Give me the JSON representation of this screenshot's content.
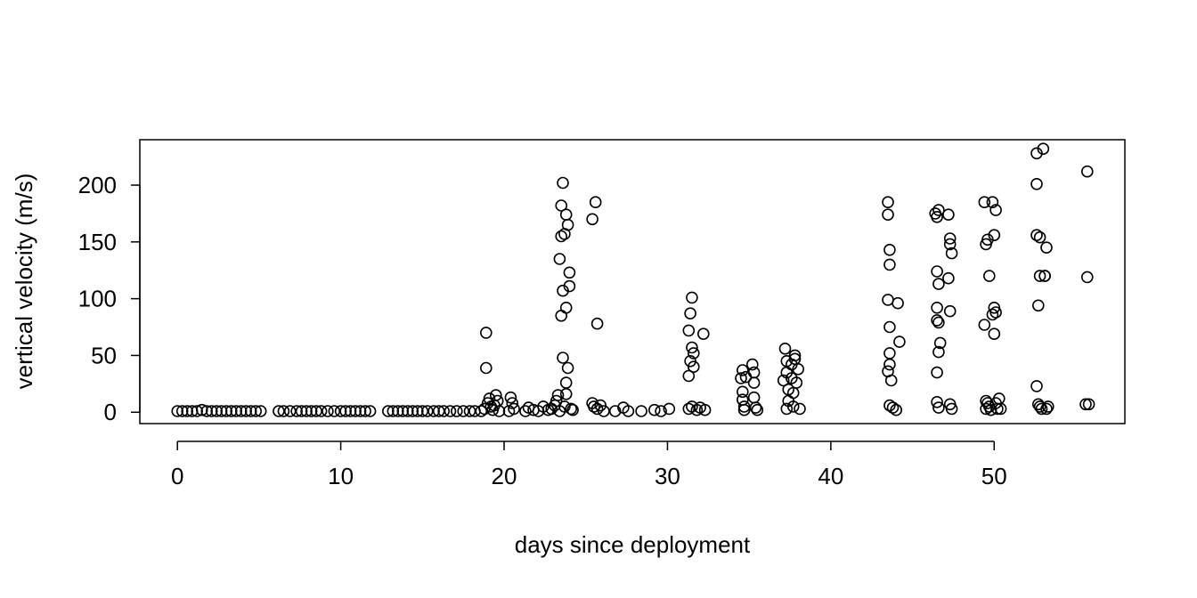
{
  "chart_data": {
    "type": "scatter",
    "title": "",
    "xlabel": "days since deployment",
    "ylabel": "vertical velocity (m/s)",
    "xlim": [
      -2.3,
      58
    ],
    "ylim": [
      -10,
      240
    ],
    "xticks": [
      0,
      10,
      20,
      30,
      40,
      50
    ],
    "yticks": [
      0,
      50,
      100,
      150,
      200
    ],
    "grid": false,
    "legend": "none",
    "marker_color": "#000000",
    "series": [
      {
        "points": [
          [
            0,
            1
          ],
          [
            0.3,
            1
          ],
          [
            0.6,
            1
          ],
          [
            0.9,
            1
          ],
          [
            1.2,
            1
          ],
          [
            1.5,
            2
          ],
          [
            1.8,
            1
          ],
          [
            2.1,
            1
          ],
          [
            2.4,
            1
          ],
          [
            2.7,
            1
          ],
          [
            3.0,
            1
          ],
          [
            3.3,
            1
          ],
          [
            3.6,
            1
          ],
          [
            3.9,
            1
          ],
          [
            4.2,
            1
          ],
          [
            4.5,
            1
          ],
          [
            4.8,
            1
          ],
          [
            5.1,
            1
          ],
          [
            6.2,
            1
          ],
          [
            6.5,
            1
          ],
          [
            6.9,
            1
          ],
          [
            7.3,
            1
          ],
          [
            7.6,
            1
          ],
          [
            7.9,
            1
          ],
          [
            8.2,
            1
          ],
          [
            8.5,
            1
          ],
          [
            8.8,
            1
          ],
          [
            9.2,
            1
          ],
          [
            9.6,
            1
          ],
          [
            10.0,
            1
          ],
          [
            10.3,
            1
          ],
          [
            10.6,
            1
          ],
          [
            10.9,
            1
          ],
          [
            11.2,
            1
          ],
          [
            11.5,
            1
          ],
          [
            11.8,
            1
          ],
          [
            12.9,
            1
          ],
          [
            13.2,
            1
          ],
          [
            13.5,
            1
          ],
          [
            13.8,
            1
          ],
          [
            14.1,
            1
          ],
          [
            14.4,
            1
          ],
          [
            14.7,
            1
          ],
          [
            15.0,
            1
          ],
          [
            15.3,
            1
          ],
          [
            15.7,
            1
          ],
          [
            16.0,
            1
          ],
          [
            16.3,
            1
          ],
          [
            16.7,
            1
          ],
          [
            17.1,
            1
          ],
          [
            17.5,
            1
          ],
          [
            17.9,
            1
          ],
          [
            18.2,
            1
          ],
          [
            18.6,
            1
          ],
          [
            18.8,
            3
          ],
          [
            18.9,
            70
          ],
          [
            18.9,
            39
          ],
          [
            19.0,
            8
          ],
          [
            19.1,
            12
          ],
          [
            19.2,
            5
          ],
          [
            19.3,
            2
          ],
          [
            19.5,
            15
          ],
          [
            19.6,
            10
          ],
          [
            19.7,
            1
          ],
          [
            19.4,
            6
          ],
          [
            20.3,
            1
          ],
          [
            20.4,
            13
          ],
          [
            20.5,
            8
          ],
          [
            20.6,
            3
          ],
          [
            21.3,
            1
          ],
          [
            21.5,
            4
          ],
          [
            21.8,
            2
          ],
          [
            22.1,
            1
          ],
          [
            22.4,
            5
          ],
          [
            22.7,
            2
          ],
          [
            22.9,
            3
          ],
          [
            23.1,
            6
          ],
          [
            23.2,
            10
          ],
          [
            23.3,
            15
          ],
          [
            23.4,
            1
          ],
          [
            23.5,
            182
          ],
          [
            23.6,
            202
          ],
          [
            23.4,
            135
          ],
          [
            23.5,
            155
          ],
          [
            23.7,
            157
          ],
          [
            23.6,
            107
          ],
          [
            23.5,
            85
          ],
          [
            23.8,
            92
          ],
          [
            23.9,
            165
          ],
          [
            23.8,
            174
          ],
          [
            24.0,
            123
          ],
          [
            24.0,
            111
          ],
          [
            23.9,
            39
          ],
          [
            23.8,
            26
          ],
          [
            23.8,
            16
          ],
          [
            23.6,
            48
          ],
          [
            23.7,
            5
          ],
          [
            24.1,
            3
          ],
          [
            24.2,
            2
          ],
          [
            25.4,
            170
          ],
          [
            25.6,
            185
          ],
          [
            25.7,
            78
          ],
          [
            25.4,
            8
          ],
          [
            25.5,
            5
          ],
          [
            25.7,
            3
          ],
          [
            25.9,
            6
          ],
          [
            26.1,
            1
          ],
          [
            26.8,
            1
          ],
          [
            27.3,
            4
          ],
          [
            27.6,
            1
          ],
          [
            28.4,
            1
          ],
          [
            29.2,
            2
          ],
          [
            29.6,
            1
          ],
          [
            30.1,
            3
          ],
          [
            31.3,
            32
          ],
          [
            31.4,
            45
          ],
          [
            31.5,
            57
          ],
          [
            31.3,
            72
          ],
          [
            31.4,
            87
          ],
          [
            31.5,
            101
          ],
          [
            31.6,
            52
          ],
          [
            31.6,
            40
          ],
          [
            31.3,
            3
          ],
          [
            31.5,
            5
          ],
          [
            31.8,
            2
          ],
          [
            32.0,
            4
          ],
          [
            32.2,
            69
          ],
          [
            32.3,
            2
          ],
          [
            34.5,
            30
          ],
          [
            34.6,
            37
          ],
          [
            34.6,
            18
          ],
          [
            34.6,
            11
          ],
          [
            34.7,
            5
          ],
          [
            34.7,
            2
          ],
          [
            34.8,
            31
          ],
          [
            35.2,
            42
          ],
          [
            35.3,
            35
          ],
          [
            35.3,
            26
          ],
          [
            35.3,
            13
          ],
          [
            35.4,
            4
          ],
          [
            35.5,
            2
          ],
          [
            37.1,
            28
          ],
          [
            37.2,
            56
          ],
          [
            37.3,
            45
          ],
          [
            37.3,
            35
          ],
          [
            37.4,
            20
          ],
          [
            37.4,
            10
          ],
          [
            37.3,
            3
          ],
          [
            37.6,
            42
          ],
          [
            37.6,
            30
          ],
          [
            37.7,
            17
          ],
          [
            37.7,
            5
          ],
          [
            37.8,
            50
          ],
          [
            37.8,
            47
          ],
          [
            37.9,
            26
          ],
          [
            38.0,
            38
          ],
          [
            38.1,
            3
          ],
          [
            43.5,
            185
          ],
          [
            43.5,
            174
          ],
          [
            43.6,
            143
          ],
          [
            43.6,
            130
          ],
          [
            43.5,
            99
          ],
          [
            43.6,
            75
          ],
          [
            43.6,
            52
          ],
          [
            43.5,
            36
          ],
          [
            43.6,
            42
          ],
          [
            43.7,
            28
          ],
          [
            43.6,
            6
          ],
          [
            43.8,
            4
          ],
          [
            44.0,
            2
          ],
          [
            44.1,
            96
          ],
          [
            44.2,
            62
          ],
          [
            46.4,
            175
          ],
          [
            46.5,
            172
          ],
          [
            46.6,
            178
          ],
          [
            46.5,
            124
          ],
          [
            46.6,
            113
          ],
          [
            46.5,
            92
          ],
          [
            46.5,
            81
          ],
          [
            46.6,
            79
          ],
          [
            46.7,
            61
          ],
          [
            46.5,
            35
          ],
          [
            46.6,
            53
          ],
          [
            46.5,
            9
          ],
          [
            46.6,
            4
          ],
          [
            47.2,
            174
          ],
          [
            47.3,
            153
          ],
          [
            47.3,
            148
          ],
          [
            47.4,
            140
          ],
          [
            47.2,
            118
          ],
          [
            47.3,
            89
          ],
          [
            47.3,
            7
          ],
          [
            47.4,
            3
          ],
          [
            49.4,
            185
          ],
          [
            49.5,
            148
          ],
          [
            49.6,
            152
          ],
          [
            49.7,
            120
          ],
          [
            49.4,
            77
          ],
          [
            49.5,
            10
          ],
          [
            49.6,
            8
          ],
          [
            49.5,
            3
          ],
          [
            49.7,
            5
          ],
          [
            49.8,
            2
          ],
          [
            49.9,
            185
          ],
          [
            50.0,
            156
          ],
          [
            50.1,
            178
          ],
          [
            50.0,
            92
          ],
          [
            50.1,
            88
          ],
          [
            49.9,
            86
          ],
          [
            50.0,
            69
          ],
          [
            50.1,
            8
          ],
          [
            50.2,
            3
          ],
          [
            50.3,
            12
          ],
          [
            50.4,
            3
          ],
          [
            52.6,
            228
          ],
          [
            52.6,
            201
          ],
          [
            52.6,
            156
          ],
          [
            52.8,
            154
          ],
          [
            52.8,
            120
          ],
          [
            52.7,
            94
          ],
          [
            52.6,
            23
          ],
          [
            52.7,
            7
          ],
          [
            52.8,
            5
          ],
          [
            52.9,
            3
          ],
          [
            53.0,
            232
          ],
          [
            53.1,
            120
          ],
          [
            53.1,
            120
          ],
          [
            53.2,
            145
          ],
          [
            53.2,
            3
          ],
          [
            53.3,
            5
          ],
          [
            55.7,
            212
          ],
          [
            55.7,
            119
          ],
          [
            55.6,
            7
          ],
          [
            55.8,
            7
          ]
        ]
      }
    ]
  }
}
